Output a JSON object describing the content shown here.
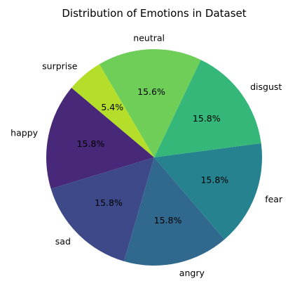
{
  "chart_data": {
    "type": "pie",
    "title": "Distribution of Emotions in Dataset",
    "categories": [
      "happy",
      "sad",
      "angry",
      "fear",
      "disgust",
      "neutral",
      "surprise"
    ],
    "values": [
      15.8,
      15.8,
      15.8,
      15.8,
      15.8,
      15.6,
      5.4
    ],
    "value_labels": [
      "15.8%",
      "15.8%",
      "15.8%",
      "15.8%",
      "15.8%",
      "15.6%",
      "5.4%"
    ],
    "colors": [
      "#482878",
      "#3e4989",
      "#31688e",
      "#26828e",
      "#35b779",
      "#6ece58",
      "#b5de2b"
    ],
    "start_angle_deg": 140,
    "direction": "counterclockwise"
  }
}
